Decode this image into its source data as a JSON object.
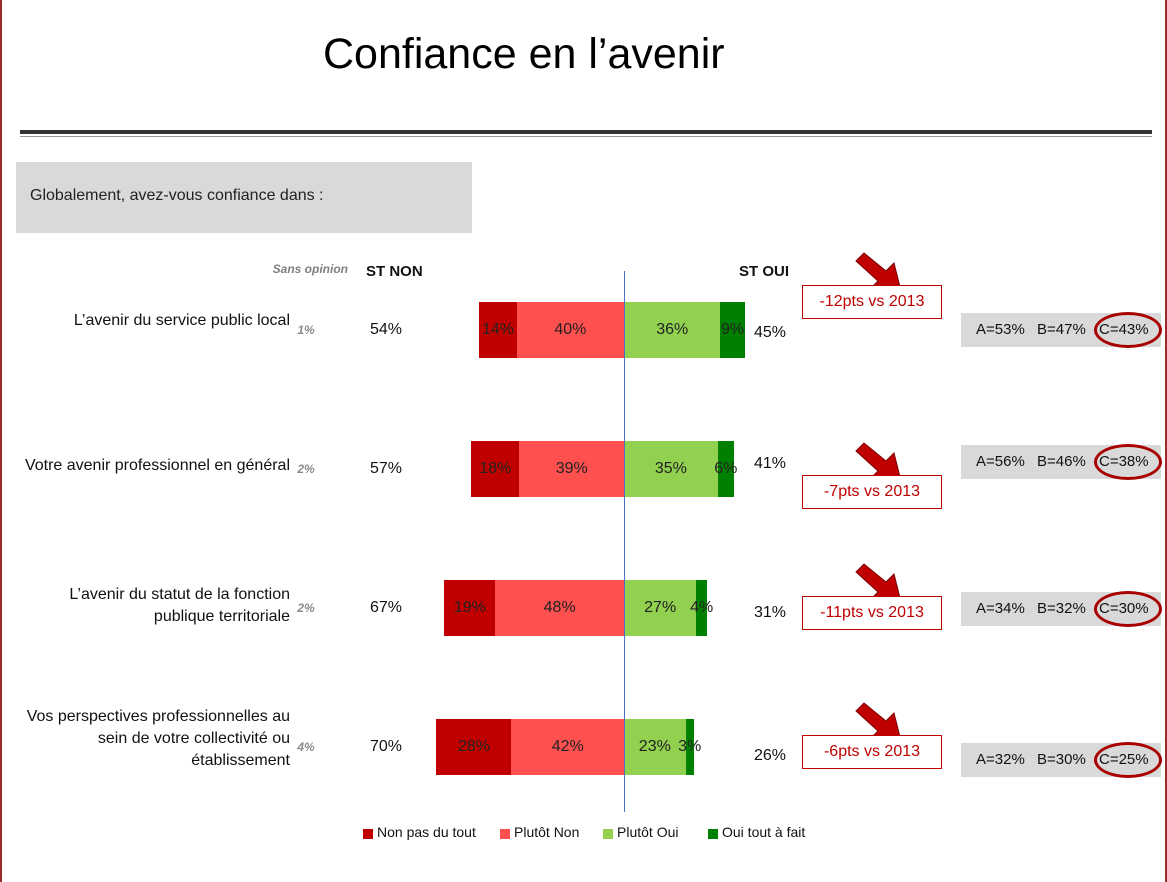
{
  "title": "Confiance en l’avenir",
  "question": "Globalement, avez-vous confiance dans :",
  "headers": {
    "sans_opinion": "Sans opinion",
    "st_non": "ST NON",
    "st_oui": "ST OUI"
  },
  "colors": {
    "non_pas_du_tout": "#c00000",
    "plutot_non": "#ff5050",
    "plutot_oui": "#92d050",
    "oui_tout_a_fait": "#008000",
    "trend_text": "#c00000",
    "panel_bg": "#d9d9d9",
    "axis": "#4a72c4"
  },
  "icons": {
    "trend_arrow": "red-arrow-icon",
    "highlight": "red-circle-icon"
  },
  "rows": [
    {
      "label": [
        "L’avenir du service public local"
      ],
      "sans_opinion": "1%",
      "st_non": "54%",
      "st_oui": "45%",
      "trend": "-12pts vs 2013",
      "a": "A=53%",
      "b": "B=47%",
      "c": "C=43%"
    },
    {
      "label": [
        "Votre avenir professionnel en général"
      ],
      "sans_opinion": "2%",
      "st_non": "57%",
      "st_oui": "41%",
      "trend": "-7pts vs 2013",
      "a": "A=56%",
      "b": "B=46%",
      "c": "C=38%"
    },
    {
      "label": [
        "L’avenir du statut de la fonction",
        "publique territoriale"
      ],
      "sans_opinion": "2%",
      "st_non": "67%",
      "st_oui": "31%",
      "trend": "-11pts vs 2013",
      "a": "A=34%",
      "b": "B=32%",
      "c": "C=30%"
    },
    {
      "label": [
        "Vos perspectives professionnelles au",
        "sein de votre collectivité ou",
        "établissement"
      ],
      "sans_opinion": "4%",
      "st_non": "70%",
      "st_oui": "26%",
      "trend": "-6pts vs 2013",
      "a": "A=32%",
      "b": "B=30%",
      "c": "C=25%"
    }
  ],
  "chart_data": {
    "type": "bar",
    "orientation": "horizontal",
    "stacking": "diverging",
    "categories": [
      "L’avenir du service public local",
      "Votre avenir professionnel en général",
      "L’avenir du statut de la fonction publique territoriale",
      "Vos perspectives professionnelles au sein de votre collectivité ou établissement"
    ],
    "series": [
      {
        "name": "Non pas du tout",
        "side": "negative",
        "values": [
          14,
          18,
          19,
          28
        ],
        "labels": [
          "14%",
          "18%",
          "19%",
          "28%"
        ]
      },
      {
        "name": "Plutôt Non",
        "side": "negative",
        "values": [
          40,
          39,
          48,
          42
        ],
        "labels": [
          "40%",
          "39%",
          "48%",
          "42%"
        ]
      },
      {
        "name": "Plutôt Oui",
        "side": "positive",
        "values": [
          36,
          35,
          27,
          23
        ],
        "labels": [
          "36%",
          "35%",
          "27%",
          "23%"
        ]
      },
      {
        "name": "Oui tout à fait",
        "side": "positive",
        "values": [
          9,
          6,
          4,
          3
        ],
        "labels": [
          "9%",
          "6%",
          "4%",
          "3%"
        ]
      }
    ],
    "legend_position": "bottom"
  },
  "legend": [
    "Non pas du tout",
    "Plutôt Non",
    "Plutôt Oui",
    "Oui tout à fait"
  ]
}
